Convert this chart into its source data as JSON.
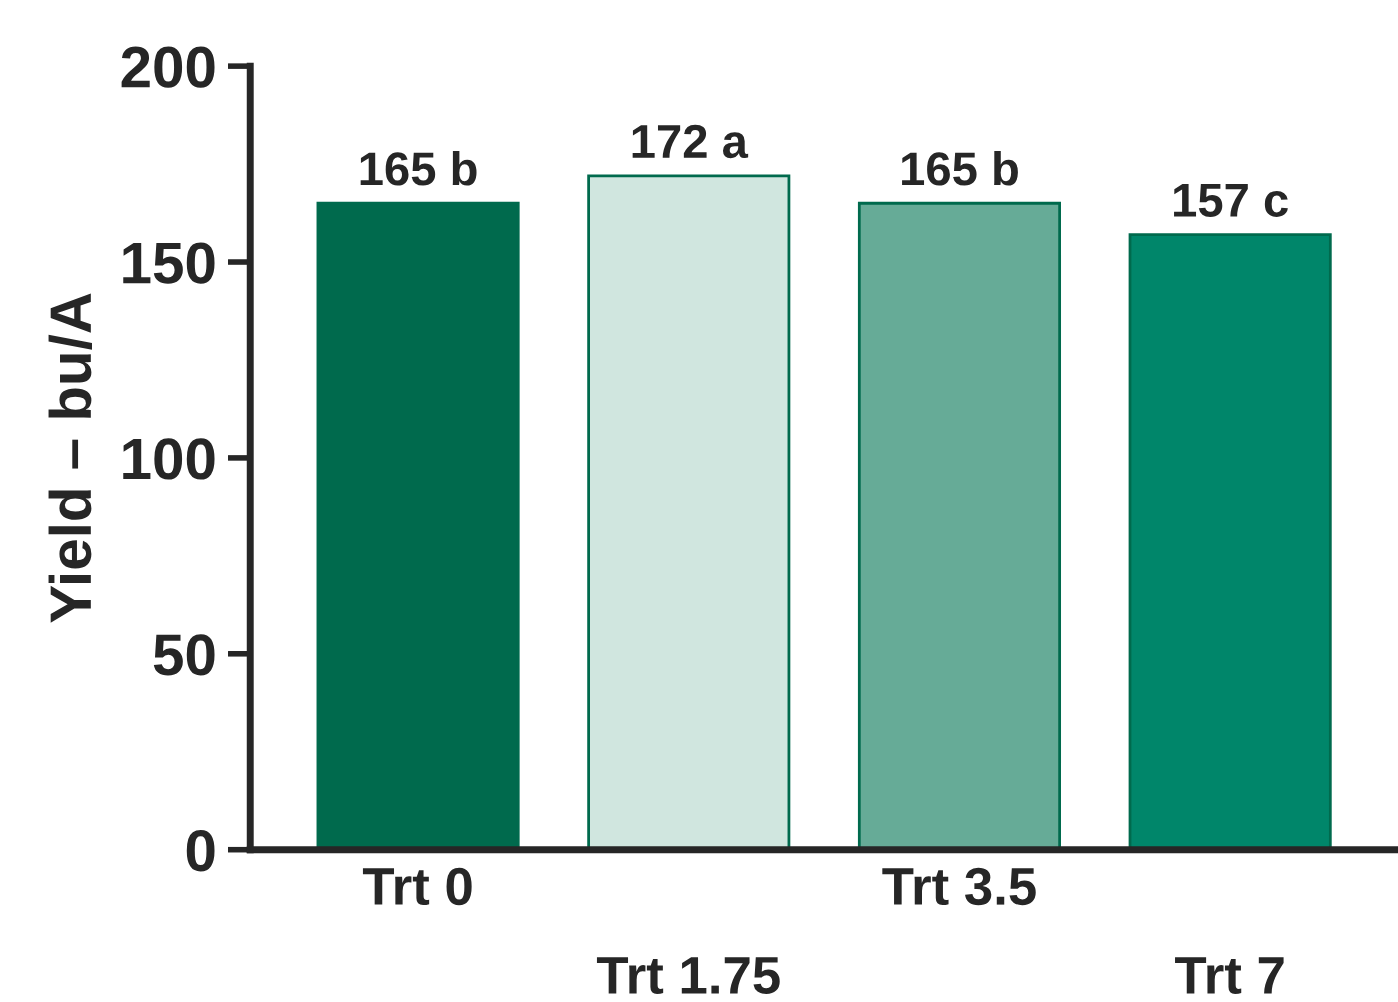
{
  "chart_data": {
    "type": "bar",
    "ylabel": "Yield – bu/A",
    "categories": [
      "Trt 0",
      "Trt 1.75",
      "Trt 3.5",
      "Trt 7"
    ],
    "values": [
      165,
      172,
      165,
      157
    ],
    "colors": [
      "#006a4d",
      "#d0e6df",
      "#66ab97",
      "#00866a"
    ],
    "value_labels": [
      "165 b",
      "172 a",
      "165 b",
      "157 c"
    ],
    "ylim": [
      0,
      200
    ],
    "yticks": [
      0,
      50,
      100,
      150,
      200
    ],
    "grid": false,
    "legend": false
  }
}
